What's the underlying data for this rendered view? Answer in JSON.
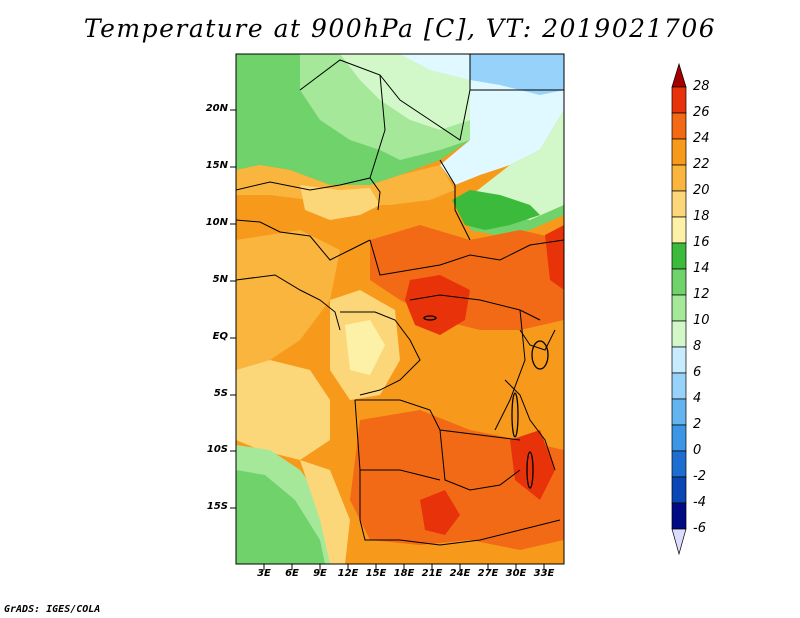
{
  "title": "Temperature at 900hPa [C], VT: 2019021706",
  "credit": "GrADS: IGES/COLA",
  "latitude_labels": [
    "20N",
    "15N",
    "10N",
    "5N",
    "EQ",
    "5S",
    "10S",
    "15S"
  ],
  "longitude_labels": [
    "3E",
    "6E",
    "9E",
    "12E",
    "15E",
    "18E",
    "21E",
    "24E",
    "27E",
    "30E",
    "33E"
  ],
  "colorbar": {
    "levels": [
      "28",
      "26",
      "24",
      "22",
      "20",
      "18",
      "16",
      "14",
      "12",
      "10",
      "8",
      "6",
      "4",
      "2",
      "0",
      "-2",
      "-4",
      "-6"
    ],
    "colors": [
      "#a50000",
      "#e8330a",
      "#f26a15",
      "#f79a1c",
      "#f9b53d",
      "#fbd77a",
      "#fdf1a8",
      "#3cba3c",
      "#6fd26a",
      "#a5e89a",
      "#d2f7c8",
      "#c8ecff",
      "#96d2fa",
      "#64b4f0",
      "#3c96e6",
      "#1e6ed2",
      "#0a46b4",
      "#000a82",
      "#08006e",
      "#dcdcff"
    ]
  },
  "fill_colors": {
    "hot": "#e8330a",
    "very_warm": "#f26a15",
    "warm": "#f79a1c",
    "mild": "#f9b53d",
    "cool_warm": "#fbd77a",
    "green_dark": "#3cba3c",
    "green": "#6fd26a",
    "green_light": "#a5e89a",
    "pale": "#d2f7c8",
    "ice": "#e0f8ff",
    "sky": "#96d2fa"
  }
}
